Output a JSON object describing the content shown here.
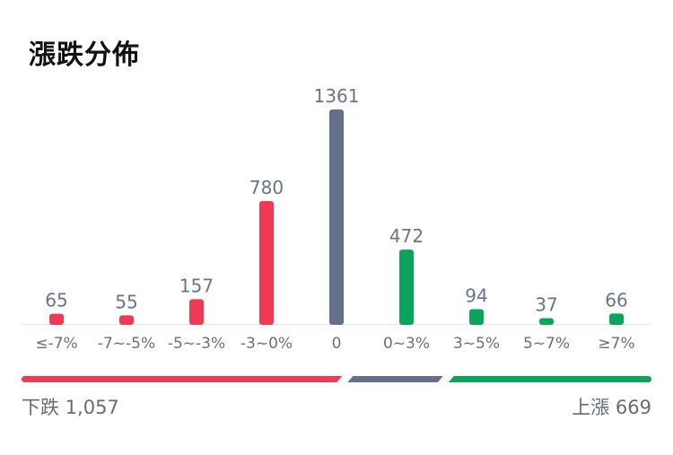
{
  "title": "漲跌分佈",
  "colors": {
    "down": "#f03a55",
    "flat": "#64708a",
    "up": "#0aa55a",
    "label": "#6a7389",
    "axis": "#e6e6e6"
  },
  "chart_data": {
    "type": "bar",
    "categories": [
      "≤-7%",
      "-7~-5%",
      "-5~-3%",
      "-3~0%",
      "0",
      "0~3%",
      "3~5%",
      "5~7%",
      "≥7%"
    ],
    "values": [
      65,
      55,
      157,
      780,
      1361,
      472,
      94,
      37,
      66
    ],
    "groups": [
      "down",
      "down",
      "down",
      "down",
      "flat",
      "up",
      "up",
      "up",
      "up"
    ],
    "ylim": [
      0,
      1361
    ]
  },
  "summary": {
    "down_text": "下跌 1,057",
    "up_text": "上漲 669",
    "down_count": 1057,
    "flat_count": 1361,
    "up_count": 669
  }
}
